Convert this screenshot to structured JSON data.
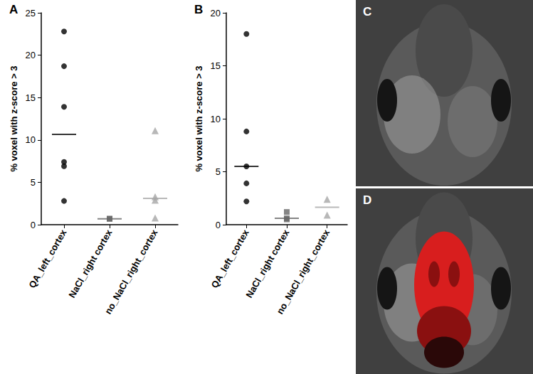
{
  "chart_data": [
    {
      "type": "scatter",
      "title": "A",
      "y_label": "% voxel with z-score > 3",
      "categories": [
        "QA_left_cortex",
        "NaCl_right cortex",
        "no_NaCl_right_cortex"
      ],
      "values": [
        [
          22.8,
          18.7,
          13.9,
          7.4,
          6.9,
          2.8
        ],
        [
          0.7,
          0.7
        ],
        [
          11.1,
          3.3,
          2.9,
          0.8
        ]
      ],
      "medians": [
        10.65,
        0.7,
        3.1
      ],
      "colors": [
        "#000000",
        "#666666",
        "#a6a6a6"
      ],
      "markers": [
        "circle",
        "square",
        "triangle"
      ],
      "ylim": [
        0,
        25
      ],
      "yticks": [
        0,
        5,
        10,
        15,
        20,
        25
      ],
      "grid": false
    },
    {
      "type": "scatter",
      "title": "B",
      "y_label": "% voxel with z-score > 3",
      "categories": [
        "QA_left_cortex",
        "NaCl_right cortex",
        "no_NaCl_right_cortex"
      ],
      "values": [
        [
          18.0,
          8.8,
          5.5,
          3.9,
          2.2
        ],
        [
          1.2,
          0.6,
          0.5
        ],
        [
          2.4,
          0.9
        ]
      ],
      "medians": [
        5.5,
        0.6,
        1.65
      ],
      "colors": [
        "#000000",
        "#666666",
        "#a6a6a6"
      ],
      "markers": [
        "circle",
        "square",
        "triangle"
      ],
      "ylim": [
        0,
        20
      ],
      "yticks": [
        0,
        5,
        10,
        15,
        20
      ],
      "grid": false
    }
  ],
  "images": [
    {
      "label": "C"
    },
    {
      "label": "D"
    }
  ]
}
